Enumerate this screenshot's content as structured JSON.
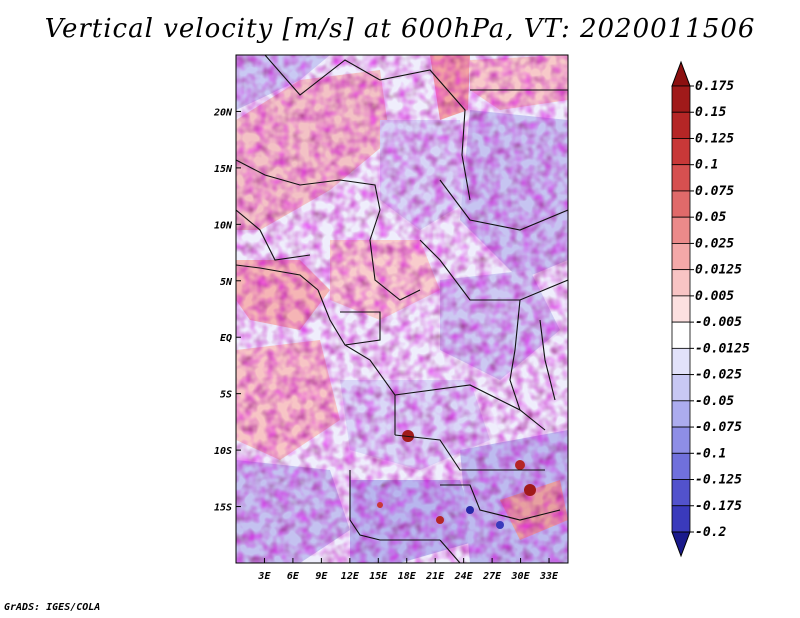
{
  "title": "Vertical velocity [m/s] at 600hPa, VT: 2020011506",
  "footer": "GrADS: IGES/COLA",
  "map": {
    "lon_range": [
      0,
      35
    ],
    "lat_range": [
      -20,
      25
    ],
    "field": "vertical velocity at 600hPa",
    "lat_ticks": [
      {
        "value": 20,
        "label": "20N"
      },
      {
        "value": 15,
        "label": "15N"
      },
      {
        "value": 10,
        "label": "10N"
      },
      {
        "value": 5,
        "label": "5N"
      },
      {
        "value": 0,
        "label": "EQ"
      },
      {
        "value": -5,
        "label": "5S"
      },
      {
        "value": -10,
        "label": "10S"
      },
      {
        "value": -15,
        "label": "15S"
      }
    ],
    "lon_ticks": [
      {
        "value": 3,
        "label": "3E"
      },
      {
        "value": 6,
        "label": "6E"
      },
      {
        "value": 9,
        "label": "9E"
      },
      {
        "value": 12,
        "label": "12E"
      },
      {
        "value": 15,
        "label": "15E"
      },
      {
        "value": 18,
        "label": "18E"
      },
      {
        "value": 21,
        "label": "21E"
      },
      {
        "value": 24,
        "label": "24E"
      },
      {
        "value": 27,
        "label": "27E"
      },
      {
        "value": 30,
        "label": "30E"
      },
      {
        "value": 33,
        "label": "33E"
      }
    ]
  },
  "colorbar": {
    "levels": [
      {
        "label": "0.175",
        "color": "#a01a1a"
      },
      {
        "label": "0.15",
        "color": "#b52626"
      },
      {
        "label": "0.125",
        "color": "#c83838"
      },
      {
        "label": "0.1",
        "color": "#d65050"
      },
      {
        "label": "0.075",
        "color": "#e06a6a"
      },
      {
        "label": "0.05",
        "color": "#eb8a8a"
      },
      {
        "label": "0.025",
        "color": "#f3a8a8"
      },
      {
        "label": "0.0125",
        "color": "#f8c4c4"
      },
      {
        "label": "0.005",
        "color": "#fce0e0"
      },
      {
        "label": "-0.005",
        "color": "#ffffff"
      },
      {
        "label": "-0.0125",
        "color": "#e2e2fa"
      },
      {
        "label": "-0.025",
        "color": "#c8c8f4"
      },
      {
        "label": "-0.05",
        "color": "#acacee"
      },
      {
        "label": "-0.075",
        "color": "#8e8ee6"
      },
      {
        "label": "-0.1",
        "color": "#7070dc"
      },
      {
        "label": "-0.125",
        "color": "#5252cc"
      },
      {
        "label": "-0.175",
        "color": "#3a3abc"
      },
      {
        "label": "-0.2",
        "color": "#2828a8"
      }
    ],
    "top_color": "#8c1010",
    "bottom_color": "#1a1a8c"
  }
}
